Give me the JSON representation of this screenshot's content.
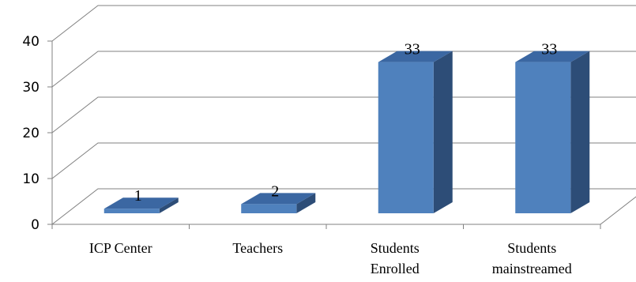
{
  "chart_data": {
    "type": "bar",
    "categories": [
      "ICP Center",
      "Teachers",
      "Students Enrolled",
      "Students mainstreamed"
    ],
    "category_lines": [
      [
        "ICP Center"
      ],
      [
        "Teachers"
      ],
      [
        "Students",
        "Enrolled"
      ],
      [
        "Students",
        "mainstreamed"
      ]
    ],
    "values": [
      1,
      2,
      33,
      33
    ],
    "data_labels": [
      "1",
      "2",
      "33",
      "33"
    ],
    "yticks": [
      0,
      10,
      20,
      30,
      40
    ],
    "ylim": [
      0,
      40
    ],
    "grid": true,
    "three_d": true,
    "bar_color": "#4f81bd",
    "bar_side_color": "#2d4d77",
    "bar_top_color": "#3b67a2"
  }
}
